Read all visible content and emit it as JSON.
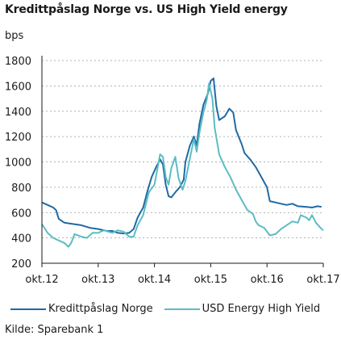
{
  "chart_data": {
    "type": "line",
    "title": "Kredittpåslag Norge vs. US High Yield energy",
    "ylabel": "bps",
    "ylim": [
      200,
      1800
    ],
    "yticks": [
      200,
      400,
      600,
      800,
      1000,
      1200,
      1400,
      1600,
      1800
    ],
    "xticks": [
      "okt.12",
      "okt.13",
      "okt.14",
      "okt.15",
      "okt.16",
      "okt.17"
    ],
    "xlim": [
      2012.75,
      2017.75
    ],
    "grid": "horizontal dotted",
    "legend_position": "bottom",
    "series": [
      {
        "name": "Kredittpåslag Norge",
        "color": "#1f6aa5",
        "points": [
          [
            2012.75,
            680
          ],
          [
            2012.85,
            660
          ],
          [
            2012.95,
            640
          ],
          [
            2013.0,
            620
          ],
          [
            2013.05,
            550
          ],
          [
            2013.15,
            520
          ],
          [
            2013.3,
            510
          ],
          [
            2013.45,
            500
          ],
          [
            2013.6,
            480
          ],
          [
            2013.75,
            470
          ],
          [
            2013.9,
            455
          ],
          [
            2014.0,
            455
          ],
          [
            2014.1,
            440
          ],
          [
            2014.2,
            435
          ],
          [
            2014.3,
            440
          ],
          [
            2014.38,
            470
          ],
          [
            2014.45,
            560
          ],
          [
            2014.55,
            640
          ],
          [
            2014.62,
            760
          ],
          [
            2014.7,
            880
          ],
          [
            2014.78,
            960
          ],
          [
            2014.85,
            1020
          ],
          [
            2014.9,
            980
          ],
          [
            2014.95,
            820
          ],
          [
            2015.0,
            730
          ],
          [
            2015.05,
            720
          ],
          [
            2015.12,
            760
          ],
          [
            2015.2,
            800
          ],
          [
            2015.27,
            860
          ],
          [
            2015.3,
            1000
          ],
          [
            2015.38,
            1130
          ],
          [
            2015.45,
            1200
          ],
          [
            2015.5,
            1130
          ],
          [
            2015.55,
            1300
          ],
          [
            2015.62,
            1450
          ],
          [
            2015.7,
            1540
          ],
          [
            2015.75,
            1640
          ],
          [
            2015.8,
            1660
          ],
          [
            2015.85,
            1440
          ],
          [
            2015.9,
            1330
          ],
          [
            2016.0,
            1360
          ],
          [
            2016.08,
            1420
          ],
          [
            2016.15,
            1390
          ],
          [
            2016.2,
            1250
          ],
          [
            2016.3,
            1140
          ],
          [
            2016.35,
            1070
          ],
          [
            2016.45,
            1020
          ],
          [
            2016.55,
            960
          ],
          [
            2016.65,
            880
          ],
          [
            2016.75,
            800
          ],
          [
            2016.8,
            690
          ],
          [
            2016.9,
            680
          ],
          [
            2017.0,
            670
          ],
          [
            2017.1,
            660
          ],
          [
            2017.2,
            670
          ],
          [
            2017.3,
            650
          ],
          [
            2017.45,
            645
          ],
          [
            2017.55,
            640
          ],
          [
            2017.65,
            650
          ],
          [
            2017.72,
            645
          ]
        ]
      },
      {
        "name": "USD Energy High Yield",
        "color": "#5bbdc3",
        "points": [
          [
            2012.75,
            510
          ],
          [
            2012.85,
            440
          ],
          [
            2012.95,
            400
          ],
          [
            2013.05,
            380
          ],
          [
            2013.15,
            360
          ],
          [
            2013.22,
            330
          ],
          [
            2013.27,
            360
          ],
          [
            2013.33,
            430
          ],
          [
            2013.45,
            410
          ],
          [
            2013.55,
            400
          ],
          [
            2013.65,
            440
          ],
          [
            2013.75,
            440
          ],
          [
            2013.85,
            460
          ],
          [
            2014.0,
            440
          ],
          [
            2014.1,
            460
          ],
          [
            2014.2,
            450
          ],
          [
            2014.3,
            410
          ],
          [
            2014.38,
            410
          ],
          [
            2014.45,
            500
          ],
          [
            2014.55,
            580
          ],
          [
            2014.65,
            760
          ],
          [
            2014.75,
            820
          ],
          [
            2014.8,
            940
          ],
          [
            2014.85,
            1060
          ],
          [
            2014.9,
            1040
          ],
          [
            2014.95,
            880
          ],
          [
            2015.0,
            820
          ],
          [
            2015.05,
            950
          ],
          [
            2015.12,
            1040
          ],
          [
            2015.18,
            870
          ],
          [
            2015.25,
            780
          ],
          [
            2015.3,
            850
          ],
          [
            2015.38,
            1030
          ],
          [
            2015.45,
            1180
          ],
          [
            2015.5,
            1080
          ],
          [
            2015.55,
            1230
          ],
          [
            2015.62,
            1390
          ],
          [
            2015.68,
            1490
          ],
          [
            2015.72,
            1620
          ],
          [
            2015.78,
            1500
          ],
          [
            2015.82,
            1270
          ],
          [
            2015.9,
            1060
          ],
          [
            2016.0,
            960
          ],
          [
            2016.1,
            880
          ],
          [
            2016.2,
            780
          ],
          [
            2016.3,
            700
          ],
          [
            2016.4,
            620
          ],
          [
            2016.5,
            590
          ],
          [
            2016.55,
            530
          ],
          [
            2016.6,
            500
          ],
          [
            2016.7,
            480
          ],
          [
            2016.8,
            420
          ],
          [
            2016.9,
            430
          ],
          [
            2017.0,
            470
          ],
          [
            2017.1,
            500
          ],
          [
            2017.2,
            530
          ],
          [
            2017.3,
            520
          ],
          [
            2017.35,
            580
          ],
          [
            2017.45,
            560
          ],
          [
            2017.5,
            540
          ],
          [
            2017.55,
            580
          ],
          [
            2017.62,
            520
          ],
          [
            2017.7,
            480
          ],
          [
            2017.75,
            460
          ]
        ]
      }
    ]
  },
  "legend": {
    "series1_label": "Kredittpåslag Norge",
    "series2_label": "USD Energy High Yield"
  },
  "source": "Kilde: Sparebank 1"
}
